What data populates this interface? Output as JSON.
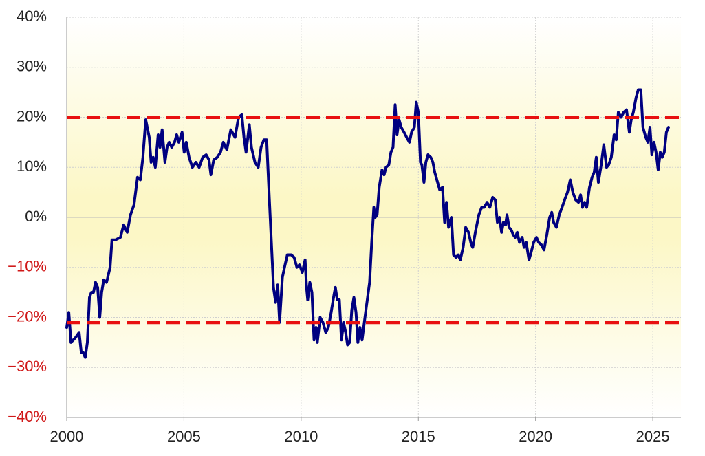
{
  "chart_data": {
    "type": "line",
    "x": [
      2000.0,
      2000.09,
      2000.18,
      2000.38,
      2000.53,
      2000.62,
      2000.7,
      2000.79,
      2000.88,
      2000.97,
      2001.05,
      2001.14,
      2001.23,
      2001.32,
      2001.41,
      2001.49,
      2001.58,
      2001.7,
      2001.85,
      2001.93,
      2002.08,
      2002.29,
      2002.43,
      2002.58,
      2002.72,
      2002.87,
      2003.02,
      2003.14,
      2003.25,
      2003.37,
      2003.52,
      2003.6,
      2003.69,
      2003.78,
      2003.9,
      2003.98,
      2004.07,
      2004.19,
      2004.28,
      2004.37,
      2004.48,
      2004.6,
      2004.69,
      2004.78,
      2004.92,
      2005.01,
      2005.1,
      2005.22,
      2005.36,
      2005.51,
      2005.65,
      2005.8,
      2005.95,
      2006.07,
      2006.15,
      2006.27,
      2006.42,
      2006.56,
      2006.68,
      2006.83,
      2007.0,
      2007.18,
      2007.33,
      2007.47,
      2007.56,
      2007.65,
      2007.79,
      2007.88,
      2008.03,
      2008.17,
      2008.29,
      2008.41,
      2008.53,
      2008.64,
      2008.73,
      2008.82,
      2008.91,
      2009.0,
      2009.08,
      2009.2,
      2009.29,
      2009.41,
      2009.58,
      2009.7,
      2009.82,
      2009.93,
      2010.05,
      2010.17,
      2010.23,
      2010.28,
      2010.37,
      2010.46,
      2010.55,
      2010.64,
      2010.69,
      2010.81,
      2010.93,
      2011.05,
      2011.16,
      2011.28,
      2011.4,
      2011.46,
      2011.54,
      2011.63,
      2011.72,
      2011.81,
      2011.9,
      2011.98,
      2012.07,
      2012.16,
      2012.25,
      2012.34,
      2012.42,
      2012.51,
      2012.6,
      2012.75,
      2012.92,
      2013.01,
      2013.1,
      2013.16,
      2013.24,
      2013.33,
      2013.45,
      2013.54,
      2013.62,
      2013.74,
      2013.83,
      2013.92,
      2014.01,
      2014.09,
      2014.18,
      2014.27,
      2014.39,
      2014.5,
      2014.62,
      2014.71,
      2014.83,
      2014.91,
      2015.0,
      2015.09,
      2015.15,
      2015.24,
      2015.32,
      2015.41,
      2015.53,
      2015.62,
      2015.7,
      2015.82,
      2015.91,
      2016.03,
      2016.12,
      2016.2,
      2016.29,
      2016.41,
      2016.5,
      2016.61,
      2016.7,
      2016.79,
      2016.91,
      2017.02,
      2017.14,
      2017.26,
      2017.32,
      2017.43,
      2017.58,
      2017.7,
      2017.81,
      2017.93,
      2018.05,
      2018.17,
      2018.28,
      2018.37,
      2018.46,
      2018.55,
      2018.63,
      2018.72,
      2018.78,
      2018.87,
      2018.96,
      2019.05,
      2019.13,
      2019.22,
      2019.31,
      2019.43,
      2019.51,
      2019.6,
      2019.72,
      2019.81,
      2019.92,
      2020.04,
      2020.13,
      2020.25,
      2020.36,
      2020.48,
      2020.6,
      2020.69,
      2020.77,
      2020.89,
      2021.01,
      2021.13,
      2021.24,
      2021.36,
      2021.48,
      2021.59,
      2021.71,
      2021.83,
      2021.92,
      2022.0,
      2022.09,
      2022.18,
      2022.3,
      2022.41,
      2022.5,
      2022.59,
      2022.68,
      2022.8,
      2022.91,
      2023.03,
      2023.12,
      2023.23,
      2023.35,
      2023.44,
      2023.53,
      2023.65,
      2023.76,
      2023.88,
      2024.0,
      2024.08,
      2024.17,
      2024.29,
      2024.38,
      2024.49,
      2024.58,
      2024.7,
      2024.79,
      2024.88,
      2024.96,
      2025.05,
      2025.14,
      2025.23,
      2025.32,
      2025.4,
      2025.49,
      2025.58,
      2025.67
    ],
    "series": [
      {
        "color": "#000080",
        "values": [
          -22,
          -19,
          -25,
          -24,
          -23,
          -27,
          -27,
          -28,
          -25,
          -16,
          -15,
          -15,
          -13,
          -14,
          -20,
          -15,
          -12.5,
          -13,
          -10,
          -4.5,
          -4.5,
          -4,
          -1.5,
          -3,
          0.5,
          2.5,
          8,
          7.5,
          12,
          19.5,
          16,
          11,
          12,
          10,
          16.5,
          14,
          17.5,
          11,
          14,
          15,
          14,
          15,
          16.5,
          15,
          17,
          13,
          15,
          12,
          10,
          11,
          10,
          12,
          12.5,
          11.5,
          8.5,
          11.5,
          12,
          13,
          15,
          13.5,
          17.5,
          16,
          20,
          20.5,
          16,
          13,
          18.5,
          14,
          11,
          10,
          14,
          15.5,
          15.5,
          4,
          -5,
          -14,
          -17,
          -13.5,
          -21,
          -12,
          -10,
          -7.5,
          -7.5,
          -8,
          -10,
          -9.5,
          -11,
          -8.5,
          -14,
          -16.5,
          -13,
          -15,
          -24.5,
          -22,
          -25,
          -20,
          -21,
          -23,
          -22,
          -19,
          -15.5,
          -14,
          -16.5,
          -16.5,
          -24.5,
          -21,
          -23,
          -25.5,
          -25,
          -18.5,
          -16,
          -19,
          -25,
          -22,
          -24.5,
          -19,
          -13,
          -5,
          2,
          0,
          0.5,
          6,
          9.5,
          8.5,
          10,
          10.5,
          13,
          14,
          22.5,
          16.5,
          19.5,
          18,
          17,
          16,
          15,
          17,
          18,
          23,
          21,
          11,
          10.5,
          7,
          11,
          12.5,
          12,
          11,
          9,
          7,
          5.5,
          6,
          -1,
          3,
          -2,
          0,
          -7.5,
          -8,
          -7.5,
          -8.5,
          -6,
          -2,
          -3,
          -5.5,
          -6,
          -3,
          0.5,
          2,
          2,
          3,
          2,
          4,
          3.5,
          -1,
          0,
          -3,
          -1,
          -1.5,
          0.5,
          -2,
          -2.5,
          -3.5,
          -4,
          -3,
          -5,
          -4,
          -6,
          -5,
          -8.5,
          -7,
          -5,
          -4,
          -5,
          -5.5,
          -6.5,
          -3.5,
          0,
          1,
          -1,
          -2,
          0.5,
          2,
          3.5,
          5,
          7.5,
          5,
          3.5,
          3,
          4.5,
          2,
          3,
          2,
          6,
          8,
          9,
          12,
          7,
          10.5,
          14.5,
          10,
          10.5,
          12,
          16.5,
          15.5,
          21,
          20,
          21,
          21.5,
          17,
          19.5,
          21,
          24,
          25.5,
          25.5,
          18,
          16,
          15,
          18,
          12.5,
          15,
          13,
          9.5,
          13,
          12,
          13,
          17,
          18
        ]
      }
    ],
    "xlim": [
      2000,
      2026.2
    ],
    "xticks": [
      2000,
      2005,
      2010,
      2015,
      2020,
      2025
    ],
    "ylim": [
      -40,
      40
    ],
    "yticks": [
      {
        "value": 40,
        "label": "40%"
      },
      {
        "value": 30,
        "label": "30%"
      },
      {
        "value": 20,
        "label": "20%"
      },
      {
        "value": 10,
        "label": "10%"
      },
      {
        "value": 0,
        "label": "0%"
      },
      {
        "value": -10,
        "label": "−10%"
      },
      {
        "value": -20,
        "label": "−20%"
      },
      {
        "value": -30,
        "label": "−30%"
      },
      {
        "value": -40,
        "label": "−40%"
      }
    ],
    "grid": true,
    "negative_tick_color": "#d01818",
    "reference_lines": [
      {
        "value": 20,
        "color": "#e81010"
      },
      {
        "value": -21,
        "color": "#e81010"
      }
    ]
  }
}
